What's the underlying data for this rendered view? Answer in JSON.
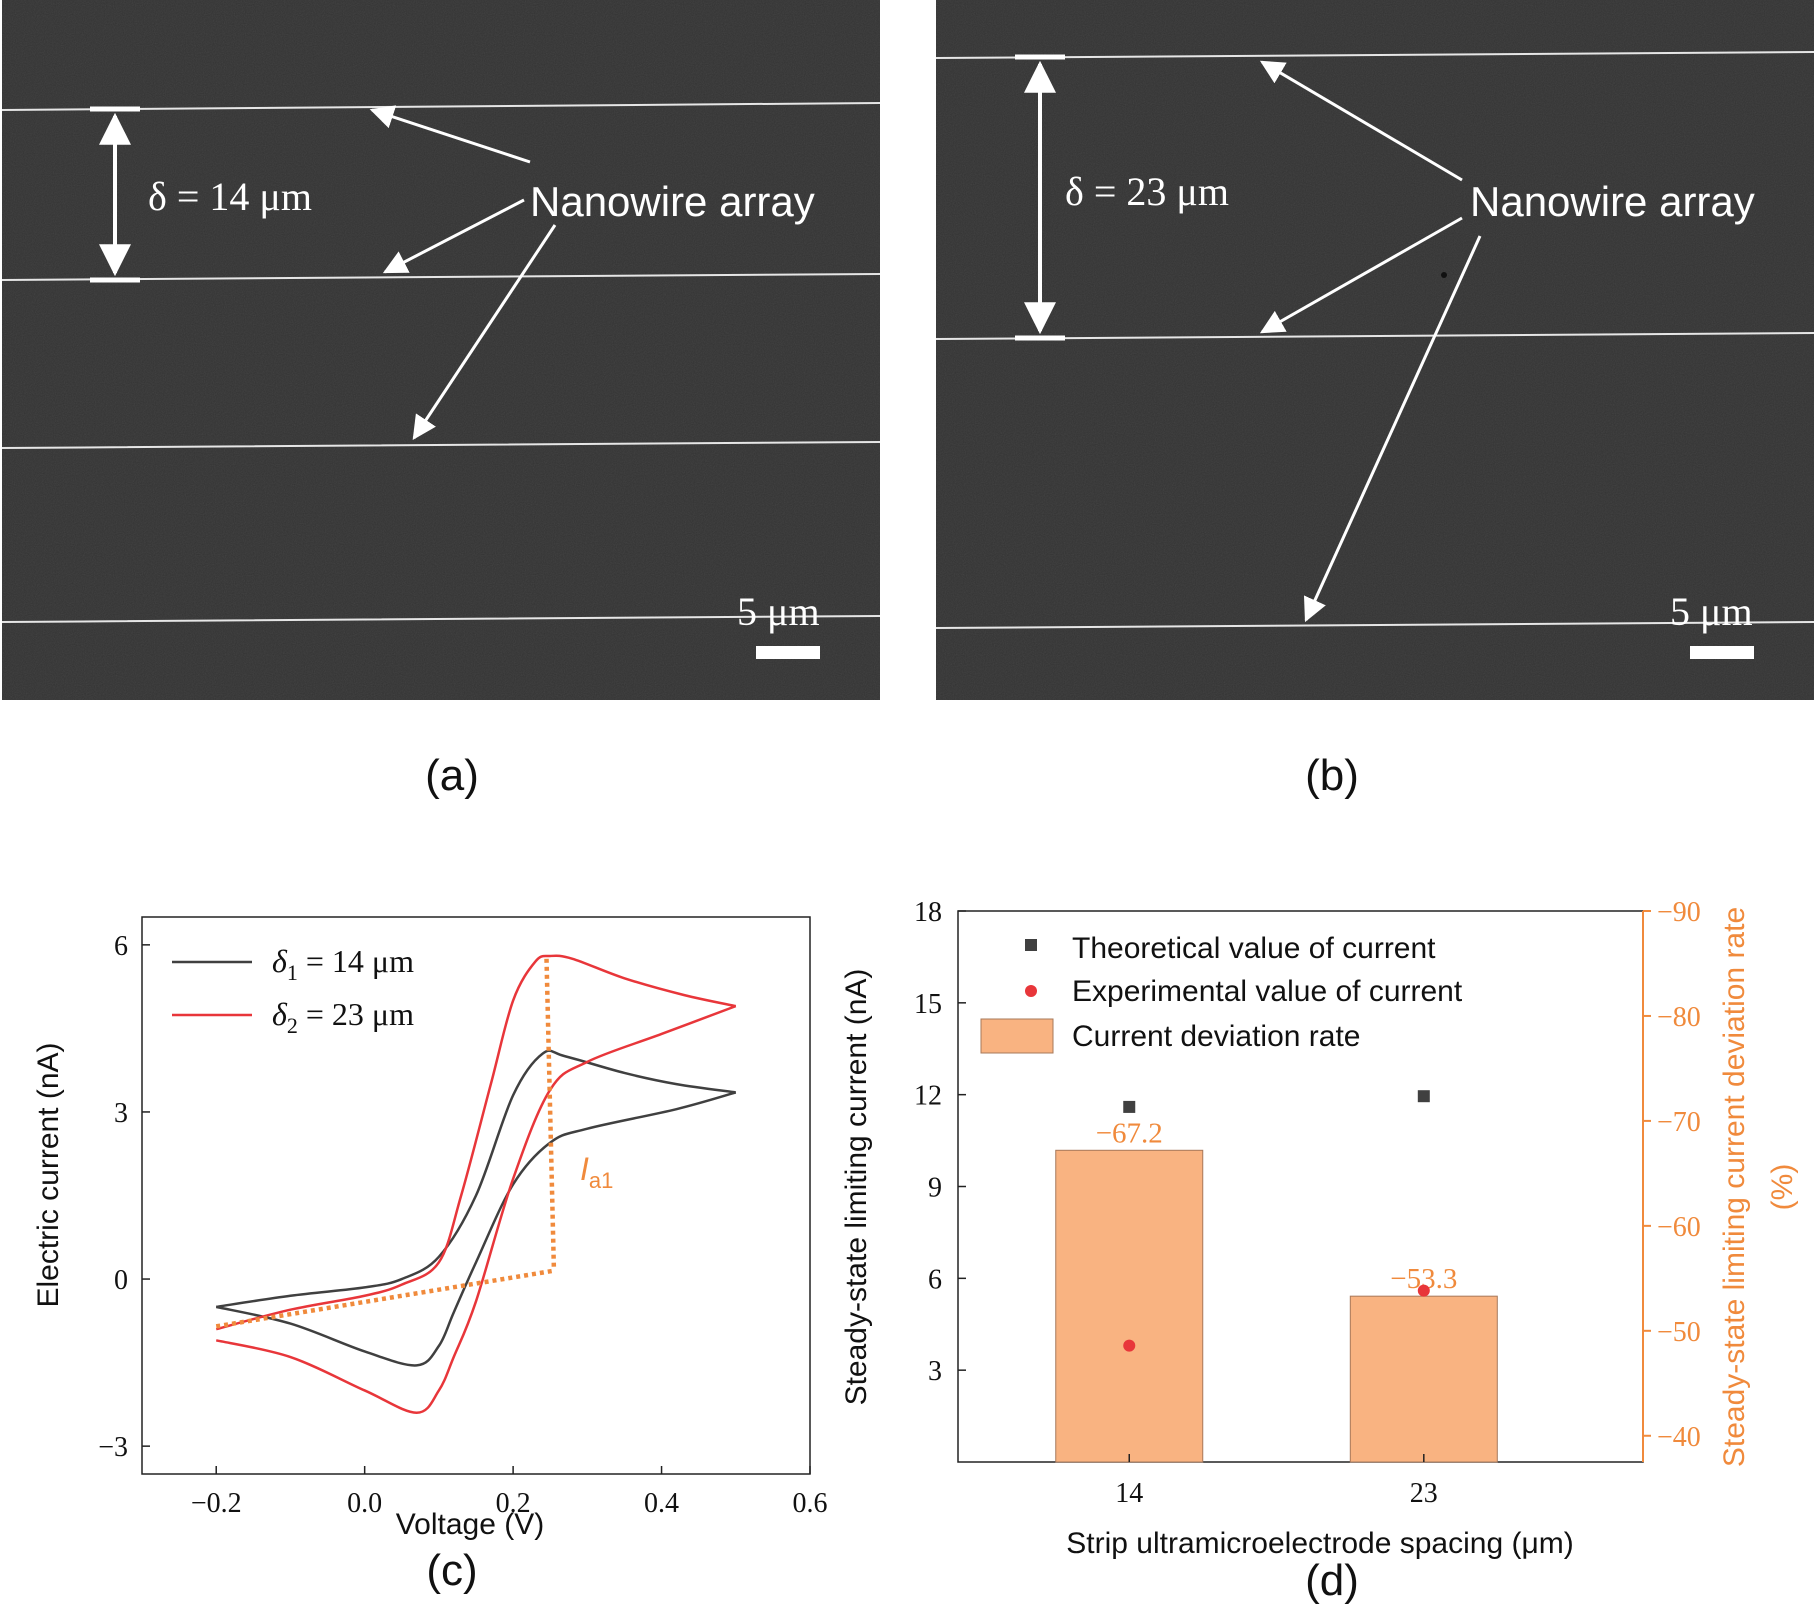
{
  "panels": {
    "a": {
      "caption": "(a)",
      "spacing_text": "δ = 14 μm",
      "annotation": "Nanowire array",
      "scalebar": "5 μm"
    },
    "b": {
      "caption": "(b)",
      "spacing_text": "δ = 23 μm",
      "annotation": "Nanowire array",
      "scalebar": "5 μm"
    },
    "c": {
      "caption": "(c)"
    },
    "d": {
      "caption": "(d)"
    }
  },
  "colors": {
    "sem_background": "#333333",
    "wire": "#e6e6e6",
    "series_14": "#404040",
    "series_23": "#e8363a",
    "orange": "#f08a3c",
    "bar_fill": "#f9b381",
    "bar_edge": "#a7785a",
    "theory_marker": "#404040",
    "exp_marker": "#e8363a"
  },
  "chart_data": [
    {
      "type": "line",
      "panel": "c",
      "xlabel": "Voltage (V)",
      "ylabel": "Electric current (nA)",
      "xlim": [
        -0.3,
        0.6
      ],
      "ylim": [
        -3.5,
        6.5
      ],
      "xticks": [
        -0.2,
        0.0,
        0.2,
        0.4,
        0.6
      ],
      "xtick_labels": [
        "−0.2",
        "0.0",
        "0.2",
        "0.4",
        "0.6"
      ],
      "yticks": [
        -3,
        0,
        3,
        6
      ],
      "ytick_labels": [
        "−3",
        "0",
        "3",
        "6"
      ],
      "legend_position": "top-left",
      "series": [
        {
          "name": "δ1 = 14 μm",
          "legend_main": "δ",
          "legend_sub": "1",
          "legend_rest": " = 14 μm",
          "forward": [
            [
              -0.2,
              -0.5
            ],
            [
              -0.1,
              -0.3
            ],
            [
              0.0,
              -0.15
            ],
            [
              0.05,
              0.0
            ],
            [
              0.1,
              0.4
            ],
            [
              0.15,
              1.5
            ],
            [
              0.2,
              3.3
            ],
            [
              0.24,
              4.05
            ],
            [
              0.27,
              4.0
            ],
            [
              0.35,
              3.7
            ],
            [
              0.42,
              3.5
            ],
            [
              0.5,
              3.35
            ]
          ],
          "reverse": [
            [
              0.5,
              3.35
            ],
            [
              0.42,
              3.05
            ],
            [
              0.3,
              2.7
            ],
            [
              0.25,
              2.45
            ],
            [
              0.2,
              1.7
            ],
            [
              0.15,
              0.3
            ],
            [
              0.12,
              -0.6
            ],
            [
              0.1,
              -1.2
            ],
            [
              0.07,
              -1.55
            ],
            [
              0.0,
              -1.3
            ],
            [
              -0.1,
              -0.8
            ],
            [
              -0.2,
              -0.5
            ]
          ]
        },
        {
          "name": "δ2 = 23 μm",
          "legend_main": "δ",
          "legend_sub": "2",
          "legend_rest": " = 23 μm",
          "forward": [
            [
              -0.2,
              -0.9
            ],
            [
              -0.1,
              -0.55
            ],
            [
              0.0,
              -0.3
            ],
            [
              0.05,
              -0.1
            ],
            [
              0.1,
              0.3
            ],
            [
              0.13,
              1.5
            ],
            [
              0.17,
              3.5
            ],
            [
              0.2,
              5.0
            ],
            [
              0.23,
              5.7
            ],
            [
              0.25,
              5.8
            ],
            [
              0.28,
              5.75
            ],
            [
              0.35,
              5.4
            ],
            [
              0.43,
              5.1
            ],
            [
              0.5,
              4.9
            ]
          ],
          "reverse": [
            [
              0.5,
              4.9
            ],
            [
              0.4,
              4.4
            ],
            [
              0.3,
              3.9
            ],
            [
              0.25,
              3.4
            ],
            [
              0.2,
              1.8
            ],
            [
              0.15,
              -0.4
            ],
            [
              0.12,
              -1.4
            ],
            [
              0.1,
              -2.0
            ],
            [
              0.07,
              -2.4
            ],
            [
              0.0,
              -2.0
            ],
            [
              -0.1,
              -1.4
            ],
            [
              -0.2,
              -1.1
            ]
          ]
        }
      ],
      "annotations": [
        {
          "text": "I",
          "subscript": "a1",
          "note": "limiting current marker"
        }
      ],
      "baseline_dotted": [
        [
          -0.2,
          -0.85
        ],
        [
          0.255,
          0.15
        ]
      ],
      "vertical_dotted": [
        [
          0.245,
          5.75
        ],
        [
          0.255,
          0.15
        ]
      ]
    },
    {
      "type": "bar",
      "panel": "d",
      "xlabel": "Strip ultramicroelectrode spacing (μm)",
      "ylabel": "Steady-state limiting current (nA)",
      "y2label_line1": "Steady-state limiting current  deviation rate",
      "y2label_line2": "(%)",
      "categories": [
        "14",
        "23"
      ],
      "ylim": [
        0,
        18
      ],
      "yticks": [
        3,
        6,
        9,
        12,
        15,
        18
      ],
      "y2lim": [
        -37.5,
        -90
      ],
      "y2ticks": [
        -40,
        -50,
        -60,
        -70,
        -80,
        -90
      ],
      "y2tick_labels": [
        "−40",
        "−50",
        "−60",
        "−70",
        "−80",
        "−90"
      ],
      "legend_position": "top-left",
      "series": [
        {
          "name": "Theoretical value of current",
          "axis": "left",
          "marker": "square",
          "values": [
            11.6,
            11.95
          ]
        },
        {
          "name": "Experimental value of current",
          "axis": "left",
          "marker": "circle",
          "values": [
            3.8,
            5.6
          ]
        },
        {
          "name": "Current deviation rate",
          "axis": "right",
          "marker": "bar",
          "values": [
            -67.2,
            -53.3
          ],
          "labels": [
            "−67.2",
            "−53.3"
          ]
        }
      ]
    }
  ]
}
